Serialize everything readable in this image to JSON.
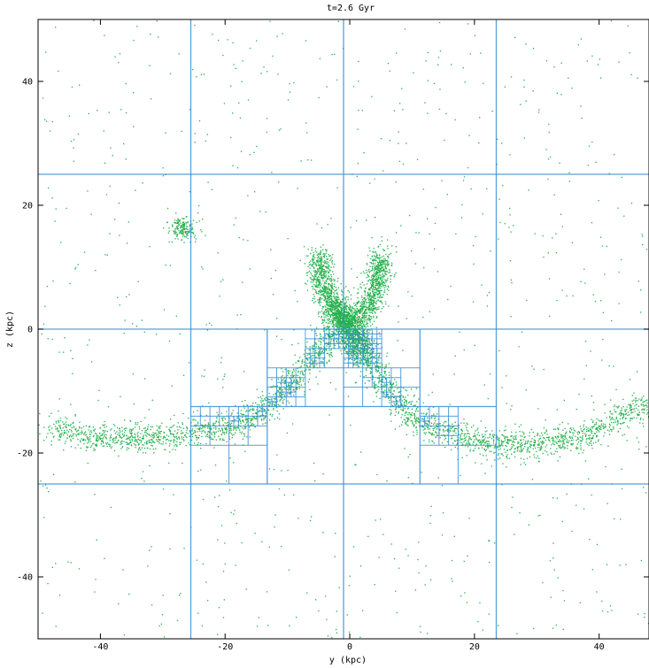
{
  "chart_data": {
    "type": "scatter",
    "title": "t=2.6 Gyr",
    "xlabel": "y (kpc)",
    "ylabel": "z (kpc)",
    "xlim": [
      -50,
      48
    ],
    "ylim": [
      -50,
      50
    ],
    "xticks": [
      -40,
      -20,
      0,
      20,
      40
    ],
    "xtick_labels": [
      "-40",
      "-20",
      "0",
      "20",
      "40"
    ],
    "yticks": [
      -40,
      -20,
      0,
      20,
      40
    ],
    "ytick_labels": [
      "-40",
      "-20",
      "0",
      "20",
      "40"
    ],
    "grid": "adaptive mesh refinement cell boundaries",
    "colors": {
      "particles": "#22b04a",
      "mesh": "#3a8fd6",
      "axes": "#000000"
    },
    "series": [
      {
        "structures": [
          {
            "kind": "tidal-arm",
            "points": [
              [
                -48,
                -16
              ],
              [
                -44,
                -17
              ],
              [
                -38,
                -17.3
              ],
              [
                -32,
                -17.6
              ],
              [
                -26,
                -16.8
              ],
              [
                -20,
                -15.8
              ],
              [
                -15,
                -13.8
              ],
              [
                -11,
                -10
              ],
              [
                -7,
                -6
              ],
              [
                -4,
                -2.5
              ],
              [
                -2,
                0
              ],
              [
                0,
                1
              ]
            ]
          },
          {
            "kind": "tidal-arm",
            "points": [
              [
                1,
                -1
              ],
              [
                3,
                -5
              ],
              [
                6,
                -10
              ],
              [
                10,
                -14
              ],
              [
                15,
                -16.5
              ],
              [
                21,
                -18
              ],
              [
                27,
                -18.6
              ],
              [
                33,
                -18.2
              ],
              [
                38,
                -17
              ],
              [
                43,
                -14
              ],
              [
                48,
                -12
              ]
            ]
          },
          {
            "kind": "plume",
            "points": [
              [
                -5,
                12
              ],
              [
                -4.5,
                8
              ],
              [
                -3.5,
                5
              ],
              [
                -2,
                2.5
              ],
              [
                -0.5,
                0.5
              ]
            ]
          },
          {
            "kind": "plume",
            "points": [
              [
                5,
                12
              ],
              [
                4.5,
                8
              ],
              [
                3.5,
                5
              ],
              [
                2,
                2.5
              ],
              [
                0.5,
                0.5
              ]
            ]
          },
          {
            "kind": "core",
            "points": [
              [
                -2,
                4
              ],
              [
                -1,
                2
              ],
              [
                0,
                0
              ],
              [
                1,
                -2
              ],
              [
                2,
                -4
              ]
            ]
          },
          {
            "kind": "clump",
            "points": [
              [
                -28,
                16
              ],
              [
                -27,
                17
              ],
              [
                -26,
                15.5
              ]
            ]
          }
        ]
      }
    ]
  }
}
